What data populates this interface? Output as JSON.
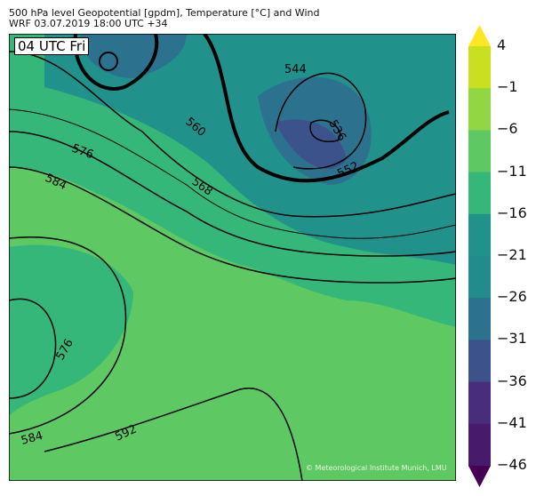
{
  "title": {
    "line1": "500 hPa level Geopotential [gpdm], Temperature [°C] and Wind",
    "line2": "WRF 03.07.2019 18:00 UTC +34"
  },
  "time_label": "04 UTC Fri",
  "copyright": "© Meteorological Institute Munich, LMU",
  "contour_labels": [
    "544",
    "536",
    "552",
    "560",
    "568",
    "576",
    "584",
    "576",
    "584",
    "592"
  ],
  "colorbar": {
    "ticks": [
      "4",
      "−1",
      "−6",
      "−11",
      "−16",
      "−21",
      "−26",
      "−31",
      "−36",
      "−41",
      "−46"
    ],
    "colors": [
      "#fde725",
      "#c8e020",
      "#90d743",
      "#5ec962",
      "#35b779",
      "#21918c",
      "#228c8d",
      "#2c728e",
      "#3b528b",
      "#472d7b",
      "#481a6c",
      "#440154"
    ],
    "extend": "both"
  }
}
